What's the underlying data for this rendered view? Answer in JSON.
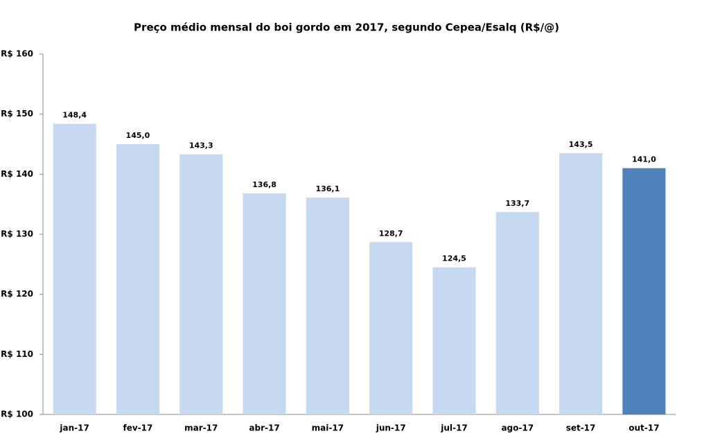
{
  "chart_data": {
    "type": "bar",
    "title": "Preço médio mensal do boi gordo em 2017, segundo Cepea/Esalq (R$/@)",
    "categories": [
      "jan-17",
      "fev-17",
      "mar-17",
      "abr-17",
      "mai-17",
      "jun-17",
      "jul-17",
      "ago-17",
      "set-17",
      "out-17"
    ],
    "values": [
      148.4,
      145.0,
      143.3,
      136.8,
      136.1,
      128.7,
      124.5,
      133.7,
      143.5,
      141.0
    ],
    "value_labels": [
      "148,4",
      "145,0",
      "143,3",
      "136,8",
      "136,1",
      "128,7",
      "124,5",
      "133,7",
      "143,5",
      "141,0"
    ],
    "colors": [
      "#c6d9f1",
      "#c6d9f1",
      "#c6d9f1",
      "#c6d9f1",
      "#c6d9f1",
      "#c6d9f1",
      "#c6d9f1",
      "#c6d9f1",
      "#c6d9f1",
      "#4f81bd"
    ],
    "ylim": [
      100,
      160
    ],
    "yticks": [
      {
        "value": 100,
        "label": "R$ 100"
      },
      {
        "value": 110,
        "label": "R$ 110"
      },
      {
        "value": 120,
        "label": "R$ 120"
      },
      {
        "value": 130,
        "label": "R$ 130"
      },
      {
        "value": 140,
        "label": "R$ 140"
      },
      {
        "value": 150,
        "label": "R$ 150"
      },
      {
        "value": 160,
        "label": "R$ 160"
      }
    ],
    "grid": false
  }
}
